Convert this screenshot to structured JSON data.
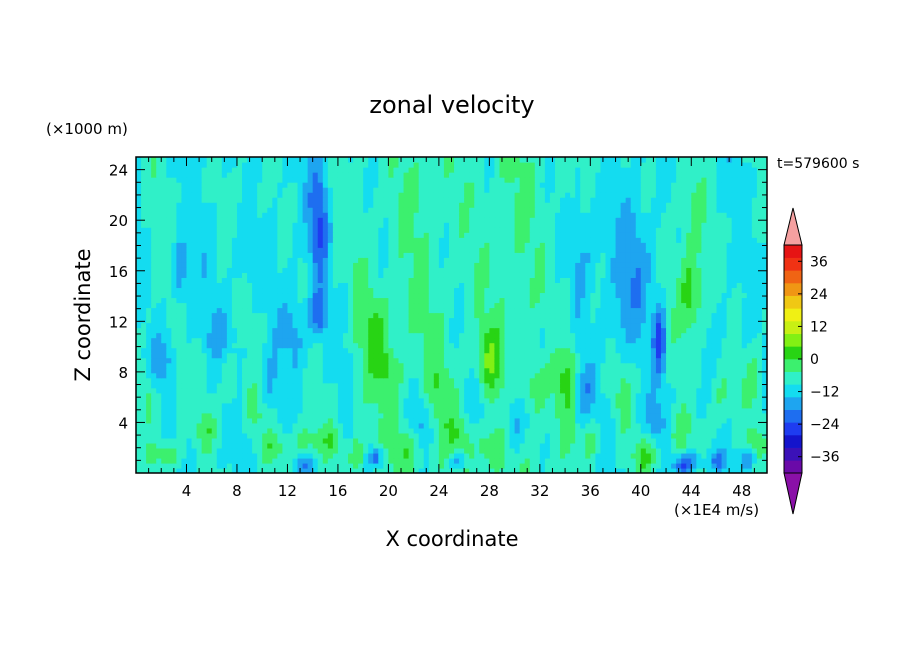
{
  "chart_data": {
    "type": "heatmap",
    "title": "zonal velocity",
    "xlabel": "X coordinate",
    "ylabel": "Z coordinate",
    "x_unit": "(×1E4 m/s)",
    "y_unit": "(×1000 m)",
    "time_label": "t=579600 s",
    "xlim": [
      0,
      50
    ],
    "ylim": [
      0,
      25
    ],
    "x_ticks": [
      4,
      8,
      12,
      16,
      20,
      24,
      28,
      32,
      36,
      40,
      44,
      48
    ],
    "x_tick_labels": [
      "4",
      "8",
      "12",
      "16",
      "20",
      "24",
      "28",
      "32",
      "36",
      "40",
      "44",
      "48"
    ],
    "y_ticks": [
      4,
      8,
      12,
      16,
      20,
      24
    ],
    "y_tick_labels": [
      "4",
      "8",
      "12",
      "16",
      "20",
      "24"
    ],
    "colorbar": {
      "min": -42,
      "max": 42,
      "step": 6,
      "ticks": [
        36,
        24,
        12,
        0,
        -12,
        -24,
        -36
      ],
      "tick_labels": [
        "36",
        "24",
        "12",
        "0",
        "−12",
        "−24",
        "−36"
      ],
      "colors": [
        "#6a0aa8",
        "#3b11b8",
        "#1414cc",
        "#1e3cf0",
        "#1e6ef0",
        "#1ea5f0",
        "#14dcf0",
        "#30f0c8",
        "#3cf06e",
        "#28d414",
        "#82f014",
        "#c8f014",
        "#f0f014",
        "#f0c814",
        "#f09614",
        "#f06414",
        "#f03214",
        "#e61414"
      ],
      "over_color": "#f5a0a0",
      "under_color": "#8a10a8"
    },
    "features": [
      {
        "x": 2.5,
        "z": 1.5,
        "v": 10,
        "sx": 1.2,
        "sz": 1.2
      },
      {
        "x": 1.0,
        "z": 6.0,
        "v": 8,
        "sx": 0.6,
        "sz": 2.0
      },
      {
        "x": 3.5,
        "z": 6.5,
        "v": 6,
        "sx": 0.5,
        "sz": 2.5
      },
      {
        "x": 5.5,
        "z": 3.5,
        "v": 9,
        "sx": 0.8,
        "sz": 1.5
      },
      {
        "x": 7.5,
        "z": 7.0,
        "v": 7,
        "sx": 0.6,
        "sz": 2.5
      },
      {
        "x": 9.5,
        "z": 5.0,
        "v": 8,
        "sx": 0.7,
        "sz": 2.0
      },
      {
        "x": 11.0,
        "z": 2.0,
        "v": 9,
        "sx": 1.0,
        "sz": 1.2
      },
      {
        "x": 13.5,
        "z": 2.5,
        "v": 10,
        "sx": 1.2,
        "sz": 1.5
      },
      {
        "x": 15.5,
        "z": 2.5,
        "v": 8,
        "sx": 0.8,
        "sz": 1.5
      },
      {
        "x": 17.5,
        "z": 1.5,
        "v": 9,
        "sx": 0.8,
        "sz": 1.2
      },
      {
        "x": 19.0,
        "z": 11.5,
        "v": 10,
        "sx": 1.2,
        "sz": 3.0
      },
      {
        "x": 20.0,
        "z": 8.0,
        "v": 8,
        "sx": 1.0,
        "sz": 2.0
      },
      {
        "x": 21.5,
        "z": 2.0,
        "v": 9,
        "sx": 1.0,
        "sz": 1.5
      },
      {
        "x": 24.0,
        "z": 6.5,
        "v": 7,
        "sx": 0.8,
        "sz": 2.5
      },
      {
        "x": 25.5,
        "z": 3.0,
        "v": 8,
        "sx": 0.8,
        "sz": 1.8
      },
      {
        "x": 28.0,
        "z": 9.0,
        "v": 13,
        "sx": 0.9,
        "sz": 2.5
      },
      {
        "x": 28.0,
        "z": 2.0,
        "v": 10,
        "sx": 1.0,
        "sz": 1.5
      },
      {
        "x": 31.5,
        "z": 7.0,
        "v": 8,
        "sx": 0.8,
        "sz": 2.5
      },
      {
        "x": 34.0,
        "z": 8.0,
        "v": 9,
        "sx": 0.9,
        "sz": 3.0
      },
      {
        "x": 36.0,
        "z": 2.5,
        "v": 8,
        "sx": 0.8,
        "sz": 1.5
      },
      {
        "x": 38.5,
        "z": 6.0,
        "v": 7,
        "sx": 0.7,
        "sz": 2.5
      },
      {
        "x": 40.5,
        "z": 1.5,
        "v": 12,
        "sx": 1.2,
        "sz": 1.5
      },
      {
        "x": 43.0,
        "z": 3.0,
        "v": 9,
        "sx": 0.8,
        "sz": 2.0
      },
      {
        "x": 44.0,
        "z": 14.5,
        "v": 15,
        "sx": 1.0,
        "sz": 3.5
      },
      {
        "x": 44.0,
        "z": 21.0,
        "v": 7,
        "sx": 1.0,
        "sz": 3.0
      },
      {
        "x": 46.5,
        "z": 6.0,
        "v": 8,
        "sx": 1.0,
        "sz": 2.5
      },
      {
        "x": 49.0,
        "z": 7.5,
        "v": 8,
        "sx": 0.8,
        "sz": 2.0
      },
      {
        "x": 49.0,
        "z": 2.5,
        "v": 8,
        "sx": 0.8,
        "sz": 1.5
      },
      {
        "x": 2.0,
        "z": 9.0,
        "v": -8,
        "sx": 1.2,
        "sz": 2.0
      },
      {
        "x": 3.5,
        "z": 16.0,
        "v": -14,
        "sx": 0.5,
        "sz": 2.5
      },
      {
        "x": 7.0,
        "z": 11.0,
        "v": -6,
        "sx": 1.5,
        "sz": 2.0
      },
      {
        "x": 12.5,
        "z": 11.0,
        "v": -8,
        "sx": 1.0,
        "sz": 3.0
      },
      {
        "x": 14.5,
        "z": 20.0,
        "v": -18,
        "sx": 0.8,
        "sz": 5.0
      },
      {
        "x": 14.5,
        "z": 12.5,
        "v": -17,
        "sx": 0.7,
        "sz": 1.8
      },
      {
        "x": 13.5,
        "z": 0.8,
        "v": -10,
        "sx": 0.8,
        "sz": 0.8
      },
      {
        "x": 19.0,
        "z": 1.2,
        "v": -18,
        "sx": 0.7,
        "sz": 0.8
      },
      {
        "x": 22.5,
        "z": 4.0,
        "v": -10,
        "sx": 0.8,
        "sz": 2.0
      },
      {
        "x": 25.5,
        "z": 1.0,
        "v": -16,
        "sx": 0.6,
        "sz": 0.8
      },
      {
        "x": 27.0,
        "z": 5.5,
        "v": -8,
        "sx": 0.7,
        "sz": 2.0
      },
      {
        "x": 30.0,
        "z": 4.0,
        "v": -12,
        "sx": 0.9,
        "sz": 2.5
      },
      {
        "x": 33.0,
        "z": 10.5,
        "v": -6,
        "sx": 1.2,
        "sz": 2.5
      },
      {
        "x": 36.0,
        "z": 18.0,
        "v": -7,
        "sx": 2.0,
        "sz": 5.0
      },
      {
        "x": 38.0,
        "z": 12.0,
        "v": -6,
        "sx": 1.0,
        "sz": 3.0
      },
      {
        "x": 39.5,
        "z": 16.0,
        "v": -8,
        "sx": 1.5,
        "sz": 5.0
      },
      {
        "x": 41.5,
        "z": 10.5,
        "v": -20,
        "sx": 0.5,
        "sz": 3.0
      },
      {
        "x": 41.0,
        "z": 4.0,
        "v": -9,
        "sx": 0.8,
        "sz": 2.0
      },
      {
        "x": 43.5,
        "z": 0.8,
        "v": -20,
        "sx": 1.0,
        "sz": 0.9
      },
      {
        "x": 46.0,
        "z": 1.0,
        "v": -12,
        "sx": 0.9,
        "sz": 0.8
      },
      {
        "x": 48.5,
        "z": 1.2,
        "v": -14,
        "sx": 0.6,
        "sz": 0.8
      },
      {
        "x": 35.5,
        "z": 6.5,
        "v": -9,
        "sx": 0.8,
        "sz": 2.0
      },
      {
        "x": 10.5,
        "z": 7.0,
        "v": -7,
        "sx": 0.8,
        "sz": 2.5
      },
      {
        "x": 8.5,
        "z": 17.0,
        "v": -6,
        "sx": 1.0,
        "sz": 3.0
      }
    ]
  }
}
